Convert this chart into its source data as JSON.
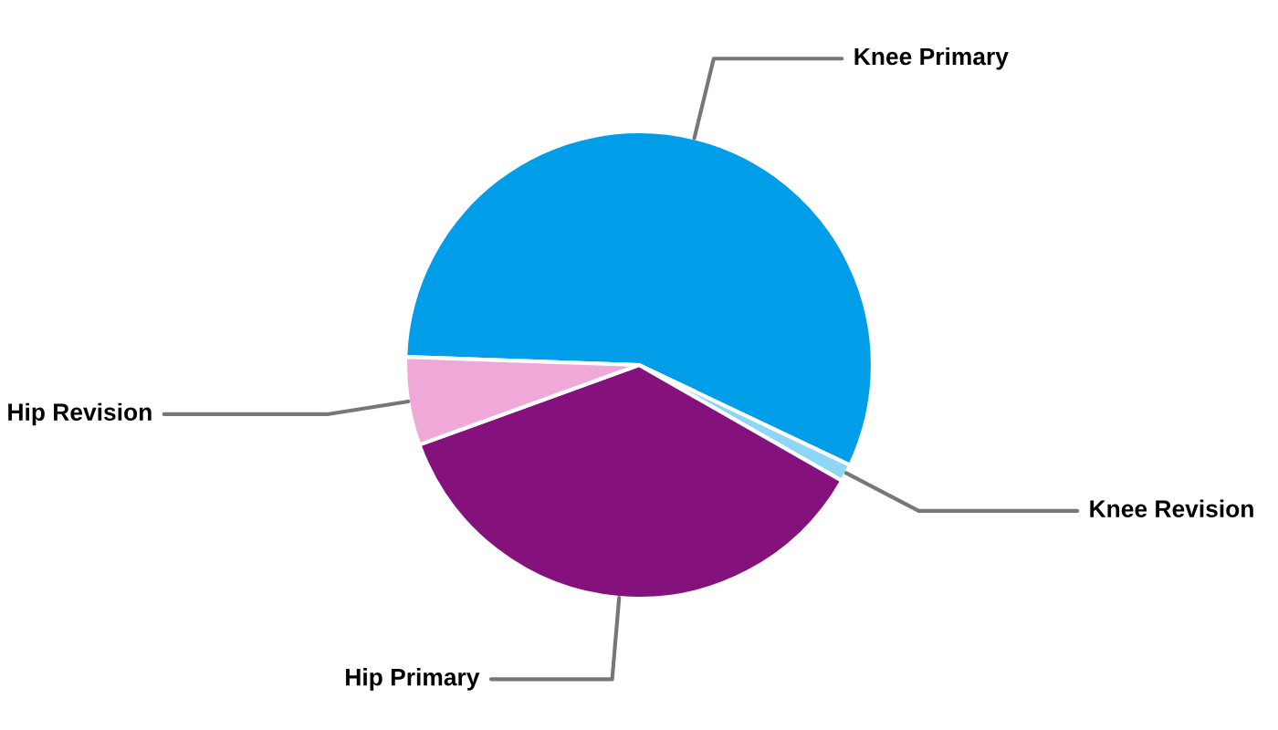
{
  "chart_data": {
    "type": "pie",
    "categories": [
      "Knee Primary",
      "Knee Revision",
      "Hip Primary",
      "Hip Revision"
    ],
    "values": [
      56.5,
      1.2,
      36.2,
      6.1
    ],
    "colors": [
      "#009de9",
      "#8fd6f4",
      "#84117c",
      "#f0a8d8"
    ]
  }
}
